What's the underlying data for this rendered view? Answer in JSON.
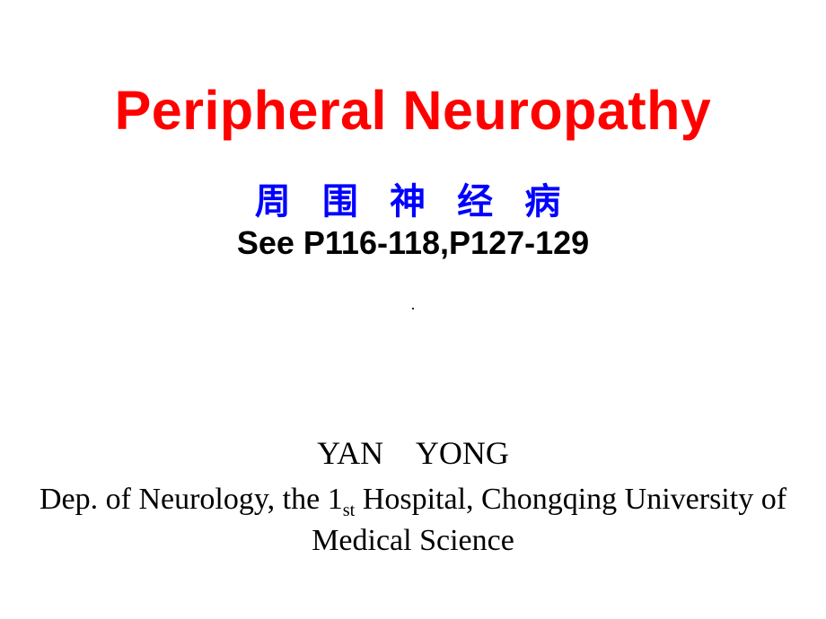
{
  "title": "Peripheral Neuropathy",
  "subtitle_cn": "周 围 神 经 病",
  "pages": "See P116-118,P127-129",
  "dot": "·",
  "author": "YAN YONG",
  "affiliation_pre": "Dep. of Neurology, the 1",
  "affiliation_ord": "st",
  "affiliation_post": " Hospital, Chongqing University of Medical Science",
  "colors": {
    "title": "#ff0000",
    "subtitle": "#0000ff",
    "text": "#000000",
    "background": "#ffffff"
  },
  "typography": {
    "title_size": 61,
    "subtitle_size": 40,
    "pages_size": 36,
    "author_size": 36,
    "affiliation_size": 34
  }
}
